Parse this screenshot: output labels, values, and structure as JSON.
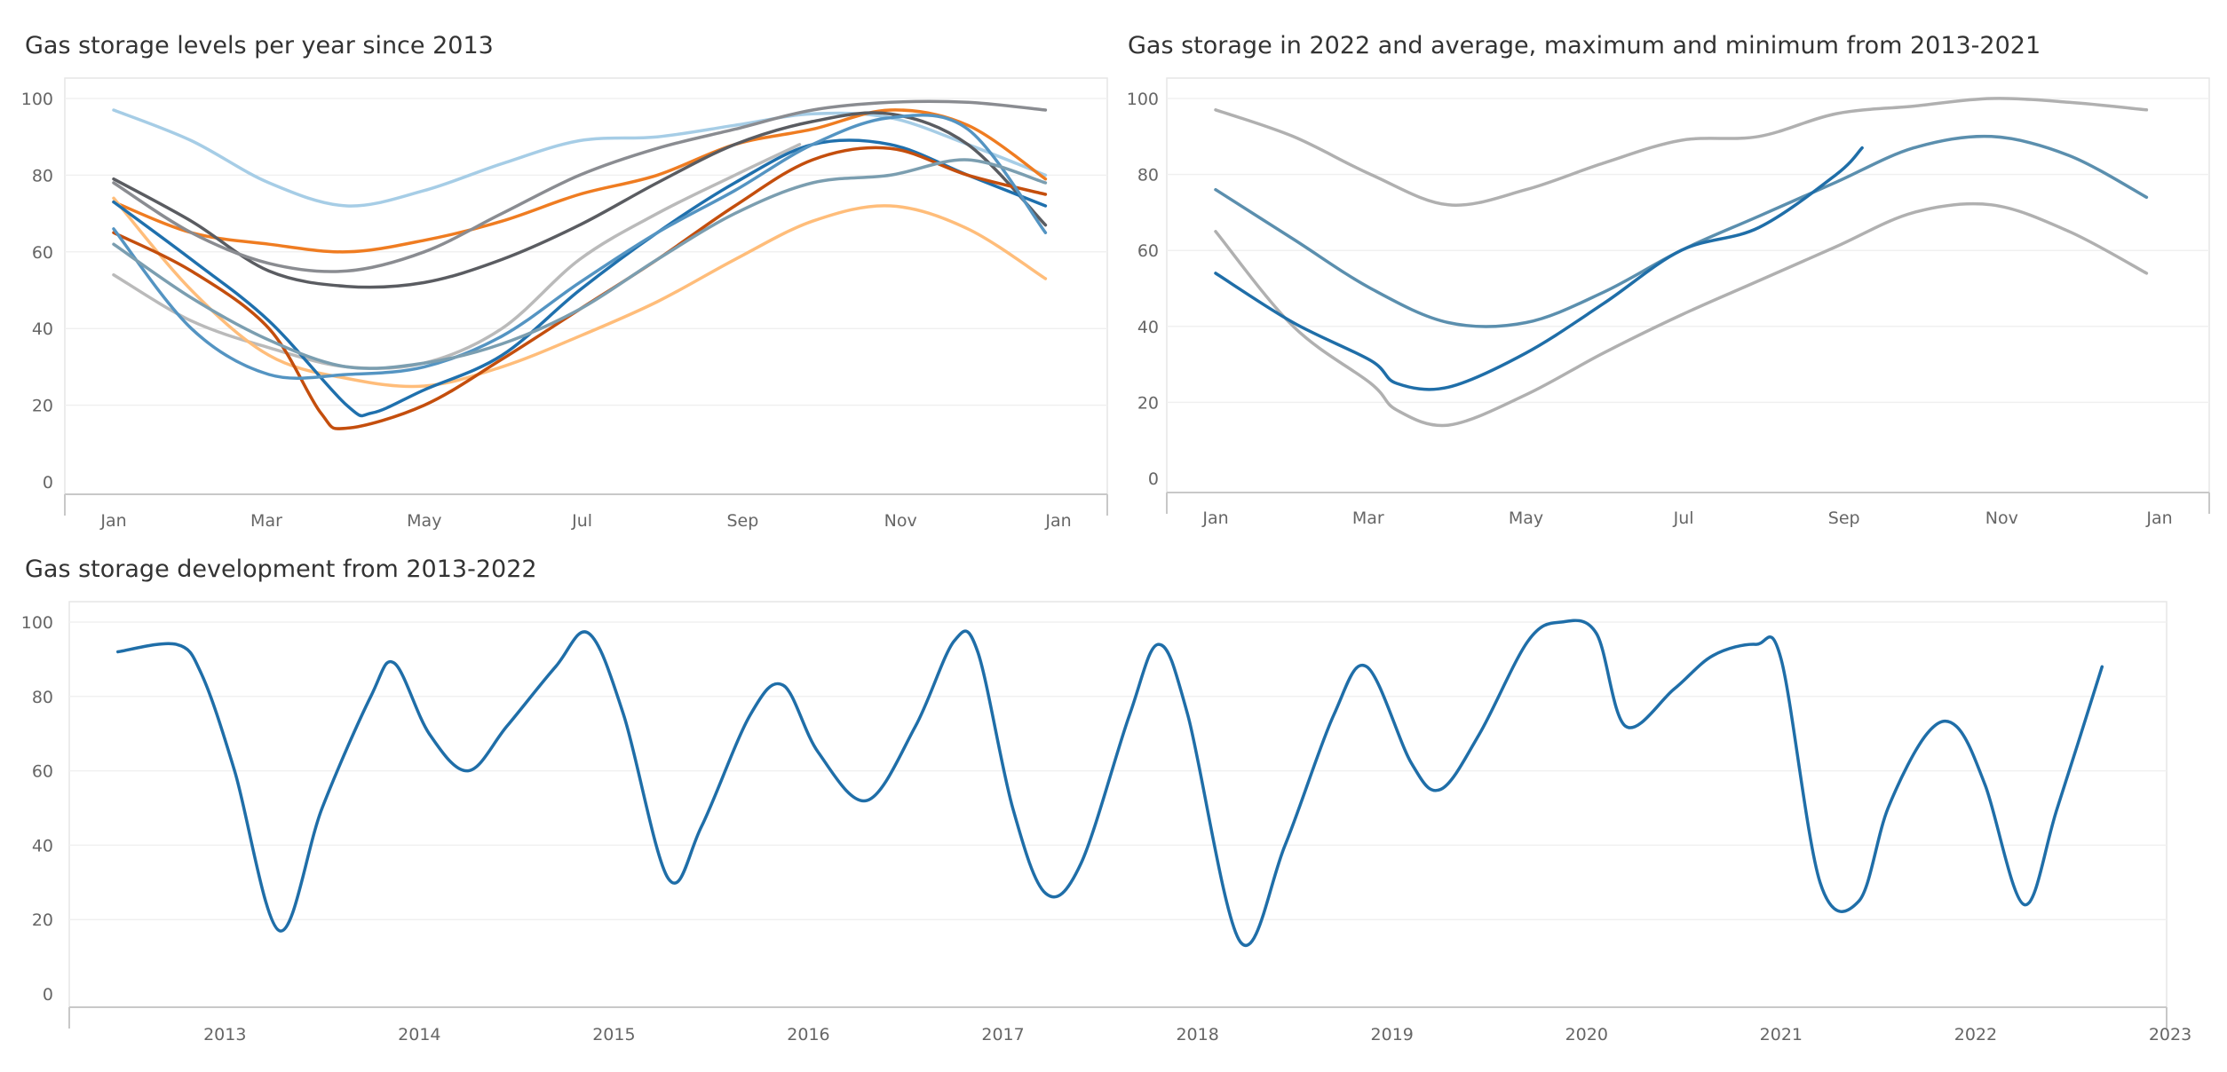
{
  "chart_data": [
    {
      "type": "line",
      "title": "Gas storage levels per year since 2013",
      "x_ticks": [
        "Jan",
        "Mar",
        "May",
        "Jul",
        "Sep",
        "Nov",
        "Jan"
      ],
      "y_ticks": [
        "0",
        "20",
        "40",
        "60",
        "80",
        "100"
      ],
      "ylim": [
        0,
        100
      ],
      "xlim": [
        0,
        365
      ],
      "x_tick_values": [
        0,
        59,
        120,
        181,
        243,
        304,
        365
      ],
      "series": [
        {
          "color": "#a6cde6",
          "x": [
            0,
            30,
            60,
            90,
            120,
            150,
            180,
            210,
            240,
            270,
            300,
            330,
            360
          ],
          "y": [
            97,
            89,
            78,
            72,
            76,
            83,
            89,
            90,
            93,
            96,
            95,
            88,
            80
          ]
        },
        {
          "color": "#ef7c21",
          "x": [
            0,
            30,
            60,
            90,
            120,
            150,
            180,
            210,
            240,
            270,
            300,
            330,
            360
          ],
          "y": [
            73,
            65,
            62,
            60,
            63,
            68,
            75,
            80,
            88,
            92,
            97,
            93,
            79
          ]
        },
        {
          "color": "#5a5c61",
          "x": [
            0,
            30,
            60,
            90,
            120,
            150,
            180,
            210,
            240,
            270,
            300,
            330,
            360
          ],
          "y": [
            79,
            68,
            55,
            51,
            52,
            58,
            67,
            78,
            88,
            94,
            96,
            88,
            67
          ]
        },
        {
          "color": "#8a8c91",
          "x": [
            0,
            30,
            60,
            90,
            120,
            150,
            180,
            210,
            240,
            270,
            300,
            330,
            360
          ],
          "y": [
            78,
            65,
            57,
            55,
            60,
            70,
            80,
            87,
            92,
            97,
            99,
            99,
            97
          ]
        },
        {
          "color": "#bababa",
          "x": [
            0,
            30,
            60,
            90,
            120,
            150,
            180,
            210,
            240,
            265
          ],
          "y": [
            54,
            42,
            35,
            30,
            31,
            40,
            58,
            70,
            80,
            88
          ]
        },
        {
          "color": "#ffbd7a",
          "x": [
            0,
            30,
            60,
            90,
            120,
            150,
            180,
            210,
            240,
            270,
            300,
            330,
            360
          ],
          "y": [
            74,
            50,
            33,
            27,
            25,
            30,
            38,
            47,
            58,
            68,
            72,
            66,
            53
          ]
        },
        {
          "color": "#1f70ad",
          "x": [
            0,
            30,
            60,
            90,
            100,
            120,
            150,
            180,
            210,
            240,
            270,
            300,
            330,
            360
          ],
          "y": [
            73,
            58,
            42,
            20,
            18,
            24,
            33,
            50,
            65,
            78,
            88,
            88,
            80,
            72
          ]
        },
        {
          "color": "#c44e0d",
          "x": [
            0,
            30,
            60,
            80,
            90,
            120,
            150,
            180,
            210,
            240,
            270,
            300,
            330,
            360
          ],
          "y": [
            65,
            55,
            40,
            18,
            14,
            20,
            32,
            45,
            58,
            72,
            84,
            87,
            80,
            75
          ]
        },
        {
          "color": "#5494c2",
          "x": [
            0,
            30,
            60,
            90,
            120,
            150,
            180,
            210,
            240,
            270,
            300,
            330,
            360
          ],
          "y": [
            66,
            40,
            28,
            28,
            30,
            38,
            52,
            65,
            76,
            88,
            95,
            92,
            65
          ]
        },
        {
          "color": "#7b9eb0",
          "x": [
            0,
            30,
            60,
            90,
            120,
            150,
            180,
            210,
            240,
            270,
            300,
            330,
            360
          ],
          "y": [
            62,
            48,
            37,
            30,
            31,
            36,
            45,
            58,
            70,
            78,
            80,
            84,
            78
          ]
        }
      ]
    },
    {
      "type": "line",
      "title": "Gas storage in 2022 and average, maximum and minimum from 2013-2021",
      "x_ticks": [
        "Jan",
        "Mar",
        "May",
        "Jul",
        "Sep",
        "Nov",
        "Jan"
      ],
      "y_ticks": [
        "0",
        "20",
        "40",
        "60",
        "80",
        "100"
      ],
      "ylim": [
        0,
        100
      ],
      "xlim": [
        0,
        365
      ],
      "x_tick_values": [
        0,
        59,
        120,
        181,
        243,
        304,
        365
      ],
      "series": [
        {
          "color": "#b0b0b0",
          "x": [
            0,
            30,
            60,
            90,
            120,
            150,
            180,
            210,
            240,
            270,
            300,
            330,
            360
          ],
          "y": [
            97,
            90,
            80,
            72,
            76,
            83,
            89,
            90,
            96,
            98,
            100,
            99,
            97
          ]
        },
        {
          "color": "#b0b0b0",
          "x": [
            0,
            30,
            60,
            70,
            90,
            120,
            150,
            180,
            210,
            240,
            270,
            300,
            330,
            360
          ],
          "y": [
            65,
            40,
            25,
            18,
            14,
            22,
            33,
            43,
            52,
            61,
            70,
            72,
            65,
            54
          ]
        },
        {
          "color": "#5b8fae",
          "x": [
            0,
            30,
            60,
            90,
            120,
            150,
            180,
            210,
            240,
            270,
            300,
            330,
            360
          ],
          "y": [
            76,
            63,
            50,
            41,
            41,
            49,
            60,
            69,
            78,
            87,
            90,
            85,
            74
          ]
        },
        {
          "color": "#1f6ea8",
          "x": [
            0,
            30,
            60,
            70,
            90,
            120,
            150,
            180,
            210,
            240,
            250
          ],
          "y": [
            54,
            41,
            31,
            25,
            24,
            33,
            46,
            60,
            66,
            80,
            87
          ]
        }
      ]
    },
    {
      "type": "line",
      "title": "Gas storage development from 2013-2022",
      "x_ticks": [
        "2013",
        "2014",
        "2015",
        "2016",
        "2017",
        "2018",
        "2019",
        "2020",
        "2021",
        "2022",
        "2023"
      ],
      "y_ticks": [
        "0",
        "20",
        "40",
        "60",
        "80",
        "100"
      ],
      "ylim": [
        0,
        100
      ],
      "xlim": [
        2012.2,
        2023
      ],
      "series": [
        {
          "color": "#1f6ea8",
          "x": [
            2012.45,
            2012.75,
            2012.88,
            2013.05,
            2013.28,
            2013.5,
            2013.75,
            2013.87,
            2014.05,
            2014.25,
            2014.45,
            2014.7,
            2014.87,
            2015.05,
            2015.28,
            2015.45,
            2015.7,
            2015.87,
            2016.05,
            2016.3,
            2016.55,
            2016.75,
            2016.87,
            2017.05,
            2017.22,
            2017.4,
            2017.65,
            2017.8,
            2017.95,
            2018.22,
            2018.45,
            2018.7,
            2018.87,
            2019.1,
            2019.25,
            2019.45,
            2019.7,
            2019.87,
            2020.05,
            2020.2,
            2020.45,
            2020.65,
            2020.87,
            2021.0,
            2021.2,
            2021.4,
            2021.55,
            2021.75,
            2021.9,
            2022.05,
            2022.25,
            2022.42,
            2022.65
          ],
          "y": [
            92,
            94,
            86,
            60,
            17,
            50,
            80,
            89,
            70,
            60,
            72,
            88,
            97,
            75,
            31,
            45,
            75,
            83,
            65,
            52,
            72,
            95,
            92,
            50,
            27,
            35,
            75,
            94,
            75,
            14,
            40,
            75,
            88,
            62,
            55,
            70,
            95,
            100,
            97,
            72,
            82,
            91,
            94,
            90,
            30,
            25,
            50,
            70,
            72,
            56,
            24,
            50,
            88
          ]
        }
      ]
    }
  ]
}
